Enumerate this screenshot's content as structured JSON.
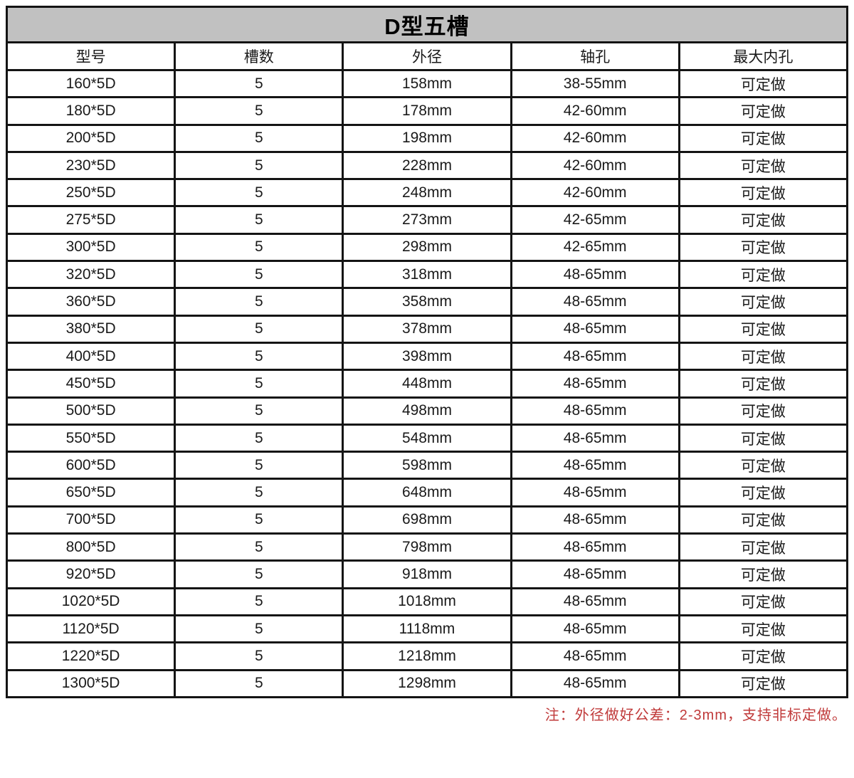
{
  "title": "D型五槽",
  "columns": [
    "型号",
    "槽数",
    "外径",
    "轴孔",
    "最大内孔"
  ],
  "rows": [
    [
      "160*5D",
      "5",
      "158mm",
      "38-55mm",
      "可定做"
    ],
    [
      "180*5D",
      "5",
      "178mm",
      "42-60mm",
      "可定做"
    ],
    [
      "200*5D",
      "5",
      "198mm",
      "42-60mm",
      "可定做"
    ],
    [
      "230*5D",
      "5",
      "228mm",
      "42-60mm",
      "可定做"
    ],
    [
      "250*5D",
      "5",
      "248mm",
      "42-60mm",
      "可定做"
    ],
    [
      "275*5D",
      "5",
      "273mm",
      "42-65mm",
      "可定做"
    ],
    [
      "300*5D",
      "5",
      "298mm",
      "42-65mm",
      "可定做"
    ],
    [
      "320*5D",
      "5",
      "318mm",
      "48-65mm",
      "可定做"
    ],
    [
      "360*5D",
      "5",
      "358mm",
      "48-65mm",
      "可定做"
    ],
    [
      "380*5D",
      "5",
      "378mm",
      "48-65mm",
      "可定做"
    ],
    [
      "400*5D",
      "5",
      "398mm",
      "48-65mm",
      "可定做"
    ],
    [
      "450*5D",
      "5",
      "448mm",
      "48-65mm",
      "可定做"
    ],
    [
      "500*5D",
      "5",
      "498mm",
      "48-65mm",
      "可定做"
    ],
    [
      "550*5D",
      "5",
      "548mm",
      "48-65mm",
      "可定做"
    ],
    [
      "600*5D",
      "5",
      "598mm",
      "48-65mm",
      "可定做"
    ],
    [
      "650*5D",
      "5",
      "648mm",
      "48-65mm",
      "可定做"
    ],
    [
      "700*5D",
      "5",
      "698mm",
      "48-65mm",
      "可定做"
    ],
    [
      "800*5D",
      "5",
      "798mm",
      "48-65mm",
      "可定做"
    ],
    [
      "920*5D",
      "5",
      "918mm",
      "48-65mm",
      "可定做"
    ],
    [
      "1020*5D",
      "5",
      "1018mm",
      "48-65mm",
      "可定做"
    ],
    [
      "1120*5D",
      "5",
      "1118mm",
      "48-65mm",
      "可定做"
    ],
    [
      "1220*5D",
      "5",
      "1218mm",
      "48-65mm",
      "可定做"
    ],
    [
      "1300*5D",
      "5",
      "1298mm",
      "48-65mm",
      "可定做"
    ]
  ],
  "note": "注：外径做好公差：2-3mm，支持非标定做。",
  "colors": {
    "title_bg": "#c1c1c1",
    "border": "#141414",
    "note_red": "#c03a3a"
  },
  "chart_data": {
    "type": "table",
    "title": "D型五槽",
    "columns": [
      "型号",
      "槽数",
      "外径",
      "轴孔",
      "最大内孔"
    ],
    "models": [
      "160*5D",
      "180*5D",
      "200*5D",
      "230*5D",
      "250*5D",
      "275*5D",
      "300*5D",
      "320*5D",
      "360*5D",
      "380*5D",
      "400*5D",
      "450*5D",
      "500*5D",
      "550*5D",
      "600*5D",
      "650*5D",
      "700*5D",
      "800*5D",
      "920*5D",
      "1020*5D",
      "1120*5D",
      "1220*5D",
      "1300*5D"
    ],
    "groove_count": 5,
    "outer_diameter_mm": [
      158,
      178,
      198,
      228,
      248,
      273,
      298,
      318,
      358,
      378,
      398,
      448,
      498,
      548,
      598,
      648,
      698,
      798,
      918,
      1018,
      1118,
      1218,
      1298
    ],
    "shaft_hole_mm": [
      "38-55",
      "42-60",
      "42-60",
      "42-60",
      "42-60",
      "42-65",
      "42-65",
      "48-65",
      "48-65",
      "48-65",
      "48-65",
      "48-65",
      "48-65",
      "48-65",
      "48-65",
      "48-65",
      "48-65",
      "48-65",
      "48-65",
      "48-65",
      "48-65",
      "48-65",
      "48-65"
    ],
    "max_inner_hole": "可定做"
  }
}
